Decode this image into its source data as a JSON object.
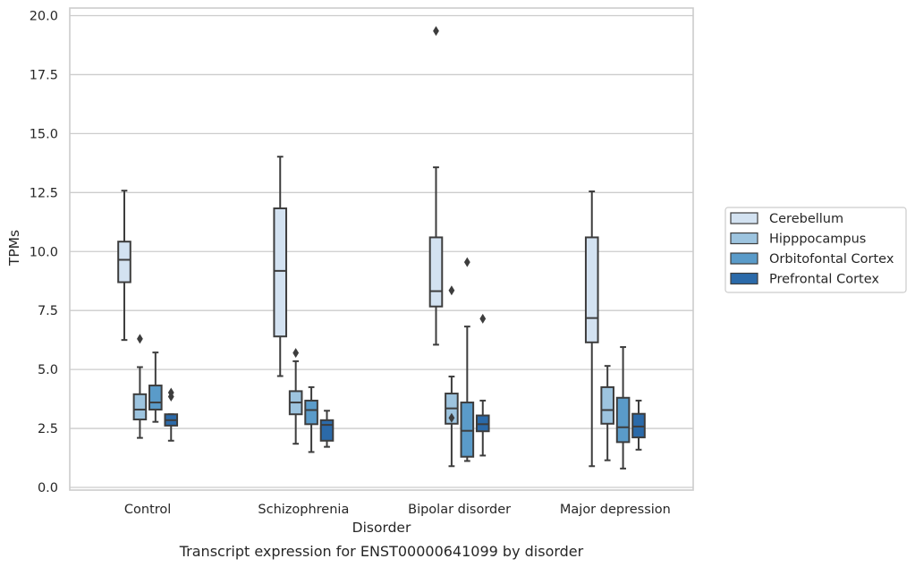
{
  "chart_data": {
    "type": "box",
    "title": "Transcript expression for ENST00000641099 by disorder",
    "xlabel": "Disorder",
    "ylabel": "TPMs",
    "ylim": [
      0,
      20.2
    ],
    "yticks": [
      "0.0",
      "2.5",
      "5.0",
      "7.5",
      "10.0",
      "12.5",
      "15.0",
      "17.5",
      "20.0"
    ],
    "ytick_values": [
      0,
      2.5,
      5,
      7.5,
      10,
      12.5,
      15,
      17.5,
      20
    ],
    "categories": [
      "Control",
      "Schizophrenia",
      "Bipolar disorder",
      "Major depression"
    ],
    "grid": "horizontal",
    "legend_position": "right",
    "series": [
      {
        "name": "Cerebellum",
        "color": "#d3e2f1",
        "boxes": [
          {
            "whislo": 6.25,
            "q1": 8.7,
            "med": 9.65,
            "q3": 10.42,
            "whishi": 12.58,
            "fliers": []
          },
          {
            "whislo": 4.72,
            "q1": 6.4,
            "med": 9.18,
            "q3": 11.83,
            "whishi": 14.02,
            "fliers": []
          },
          {
            "whislo": 6.05,
            "q1": 7.67,
            "med": 8.32,
            "q3": 10.6,
            "whishi": 13.57,
            "fliers": [
              19.35
            ]
          },
          {
            "whislo": 0.9,
            "q1": 6.15,
            "med": 7.18,
            "q3": 10.6,
            "whishi": 12.55,
            "fliers": []
          }
        ]
      },
      {
        "name": "Hipppocampus",
        "color": "#9dc4df",
        "boxes": [
          {
            "whislo": 2.1,
            "q1": 2.88,
            "med": 3.3,
            "q3": 3.95,
            "whishi": 5.1,
            "fliers": [
              6.3
            ]
          },
          {
            "whislo": 1.85,
            "q1": 3.1,
            "med": 3.6,
            "q3": 4.08,
            "whishi": 5.35,
            "fliers": [
              5.7
            ]
          },
          {
            "whislo": 0.9,
            "q1": 2.7,
            "med": 3.35,
            "q3": 3.98,
            "whishi": 4.7,
            "fliers": [
              2.95,
              8.35
            ]
          },
          {
            "whislo": 1.15,
            "q1": 2.7,
            "med": 3.28,
            "q3": 4.25,
            "whishi": 5.15,
            "fliers": []
          }
        ]
      },
      {
        "name": "Orbitofontal Cortex",
        "color": "#5a9bc9",
        "boxes": [
          {
            "whislo": 2.78,
            "q1": 3.3,
            "med": 3.6,
            "q3": 4.32,
            "whishi": 5.72,
            "fliers": []
          },
          {
            "whislo": 1.5,
            "q1": 2.68,
            "med": 3.28,
            "q3": 3.68,
            "whishi": 4.25,
            "fliers": []
          },
          {
            "whislo": 1.12,
            "q1": 1.3,
            "med": 2.4,
            "q3": 3.6,
            "whishi": 6.82,
            "fliers": [
              9.55
            ]
          },
          {
            "whislo": 0.8,
            "q1": 1.92,
            "med": 2.55,
            "q3": 3.8,
            "whishi": 5.95,
            "fliers": []
          }
        ]
      },
      {
        "name": "Prefrontal Cortex",
        "color": "#2b6aa9",
        "boxes": [
          {
            "whislo": 1.98,
            "q1": 2.62,
            "med": 2.85,
            "q3": 3.1,
            "whishi": 3.1,
            "fliers": [
              3.85,
              4.02
            ]
          },
          {
            "whislo": 1.72,
            "q1": 1.98,
            "med": 2.65,
            "q3": 2.85,
            "whishi": 3.25,
            "fliers": []
          },
          {
            "whislo": 1.35,
            "q1": 2.38,
            "med": 2.68,
            "q3": 3.05,
            "whishi": 3.68,
            "fliers": [
              7.15
            ]
          },
          {
            "whislo": 1.6,
            "q1": 2.12,
            "med": 2.58,
            "q3": 3.12,
            "whishi": 3.68,
            "fliers": []
          }
        ]
      }
    ]
  }
}
